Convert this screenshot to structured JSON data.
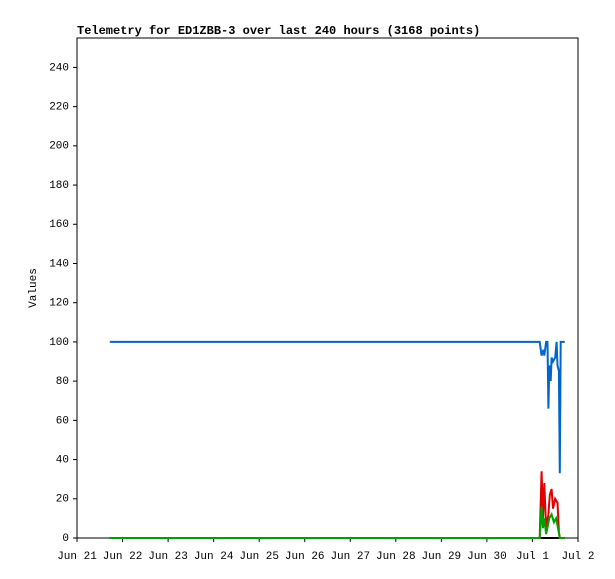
{
  "chart_data": {
    "type": "line",
    "title": "Telemetry for ED1ZBB-3 over last 240 hours (3168 points)",
    "y_label": "Values",
    "xlim": [
      0,
      11
    ],
    "xticks": [
      {
        "value": 0,
        "label": "Jun 21"
      },
      {
        "value": 1,
        "label": "Jun 22"
      },
      {
        "value": 2,
        "label": "Jun 23"
      },
      {
        "value": 3,
        "label": "Jun 24"
      },
      {
        "value": 4,
        "label": "Jun 25"
      },
      {
        "value": 5,
        "label": "Jun 26"
      },
      {
        "value": 6,
        "label": "Jun 27"
      },
      {
        "value": 7,
        "label": "Jun 28"
      },
      {
        "value": 8,
        "label": "Jun 29"
      },
      {
        "value": 9,
        "label": "Jun 30"
      },
      {
        "value": 10,
        "label": "Jul 1"
      },
      {
        "value": 11,
        "label": "Jul 2"
      }
    ],
    "ylim": [
      0,
      255
    ],
    "yticks": [
      0,
      20,
      40,
      60,
      80,
      100,
      120,
      140,
      160,
      180,
      200,
      220,
      240
    ],
    "series": [
      {
        "color": "#000000",
        "x": [
          0.72,
          10.71
        ],
        "values": [
          0,
          0
        ]
      },
      {
        "color": "#e00000",
        "x": [
          0.72,
          10.16,
          10.2,
          10.23,
          10.26,
          10.3,
          10.35,
          10.38,
          10.42,
          10.45,
          10.5,
          10.55,
          10.58,
          10.6,
          10.71
        ],
        "values": [
          0,
          0,
          34,
          10,
          28,
          5,
          12,
          22,
          25,
          15,
          20,
          18,
          3,
          0,
          0
        ]
      },
      {
        "color": "#00a000",
        "x": [
          0.72,
          10.16,
          10.2,
          10.23,
          10.26,
          10.3,
          10.37,
          10.42,
          10.47,
          10.52,
          10.56,
          10.6,
          10.71
        ],
        "values": [
          0,
          0,
          16,
          5,
          10,
          2,
          10,
          12,
          8,
          10,
          5,
          0,
          0
        ]
      },
      {
        "color": "#0066cc",
        "x": [
          0.72,
          10.16,
          10.2,
          10.24,
          10.26,
          10.3,
          10.33,
          10.35,
          10.37,
          10.4,
          10.42,
          10.45,
          10.5,
          10.53,
          10.55,
          10.58,
          10.6,
          10.62,
          10.71
        ],
        "values": [
          100,
          100,
          93,
          96,
          93,
          100,
          100,
          66,
          88,
          80,
          92,
          90,
          92,
          100,
          88,
          85,
          33,
          100,
          100
        ]
      }
    ]
  }
}
